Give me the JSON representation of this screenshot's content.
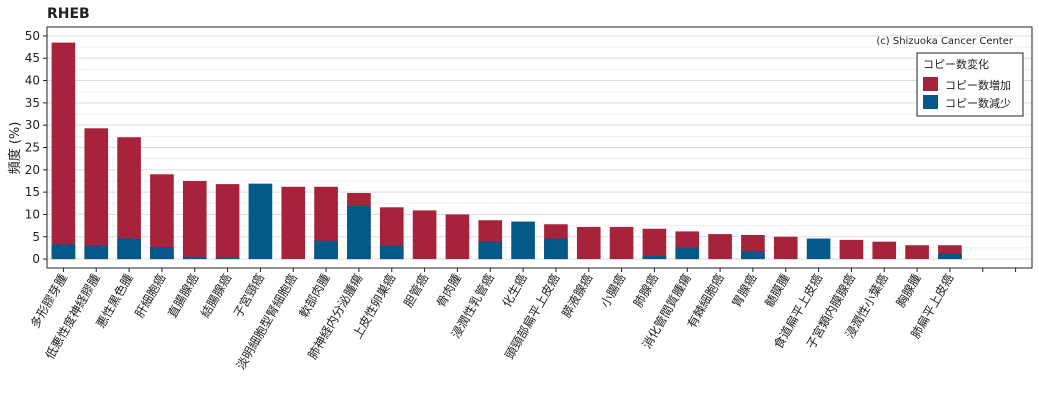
{
  "chart_data": {
    "type": "bar",
    "title": "RHEB",
    "ylabel": "頻度 (%)",
    "xlabel": "",
    "ylim": [
      -2,
      52
    ],
    "yticks": [
      0,
      5,
      10,
      15,
      20,
      25,
      30,
      35,
      40,
      45,
      50
    ],
    "grid": true,
    "copyright": "(c) Shizuoka Cancer Center",
    "legend": {
      "title": "コピー数変化",
      "position": "top-right",
      "entries": [
        {
          "name": "コピー数増加",
          "color": "#A6233B"
        },
        {
          "name": "コピー数減少",
          "color": "#035987"
        }
      ]
    },
    "categories": [
      "多形膠芽腫",
      "低悪性度神経膠腫",
      "悪性黒色腫",
      "肝細胞癌",
      "直腸腺癌",
      "結腸腺癌",
      "子宮頸癌",
      "淡明細胞型腎細胞癌",
      "軟部肉腫",
      "肺神経内分泌腫瘍",
      "上皮性卵巣癌",
      "胆管癌",
      "骨肉腫",
      "浸潤性乳管癌",
      "化生癌",
      "頭頸部扁平上皮癌",
      "膵液腺癌",
      "小腸癌",
      "肺腺癌",
      "消化管間質腫瘍",
      "有棘細胞癌",
      "胃腺癌",
      "髄膜腫",
      "食道扁平上皮癌",
      "子宮類内膜腺癌",
      "浸潤性小葉癌",
      "胸腺腫",
      "肺扁平上皮癌",
      "",
      ""
    ],
    "series": [
      {
        "name": "コピー数増加",
        "color": "#A6233B",
        "values": [
          48.5,
          29.3,
          27.3,
          19.0,
          17.5,
          16.8,
          0,
          16.2,
          16.2,
          14.8,
          11.6,
          10.9,
          10.0,
          8.7,
          0,
          7.8,
          7.2,
          7.2,
          6.8,
          6.2,
          5.6,
          5.4,
          5.0,
          0,
          4.3,
          3.9,
          3.1,
          3.1,
          0,
          0
        ]
      },
      {
        "name": "コピー数減少",
        "color": "#035987",
        "values": [
          3.3,
          3.0,
          4.6,
          2.7,
          0.5,
          0.3,
          16.9,
          0,
          4.1,
          11.9,
          3.0,
          0,
          0,
          3.9,
          8.4,
          4.6,
          0,
          0,
          0.7,
          2.5,
          0,
          1.8,
          0,
          4.6,
          0,
          0,
          0,
          1.2,
          0,
          0
        ]
      }
    ]
  }
}
